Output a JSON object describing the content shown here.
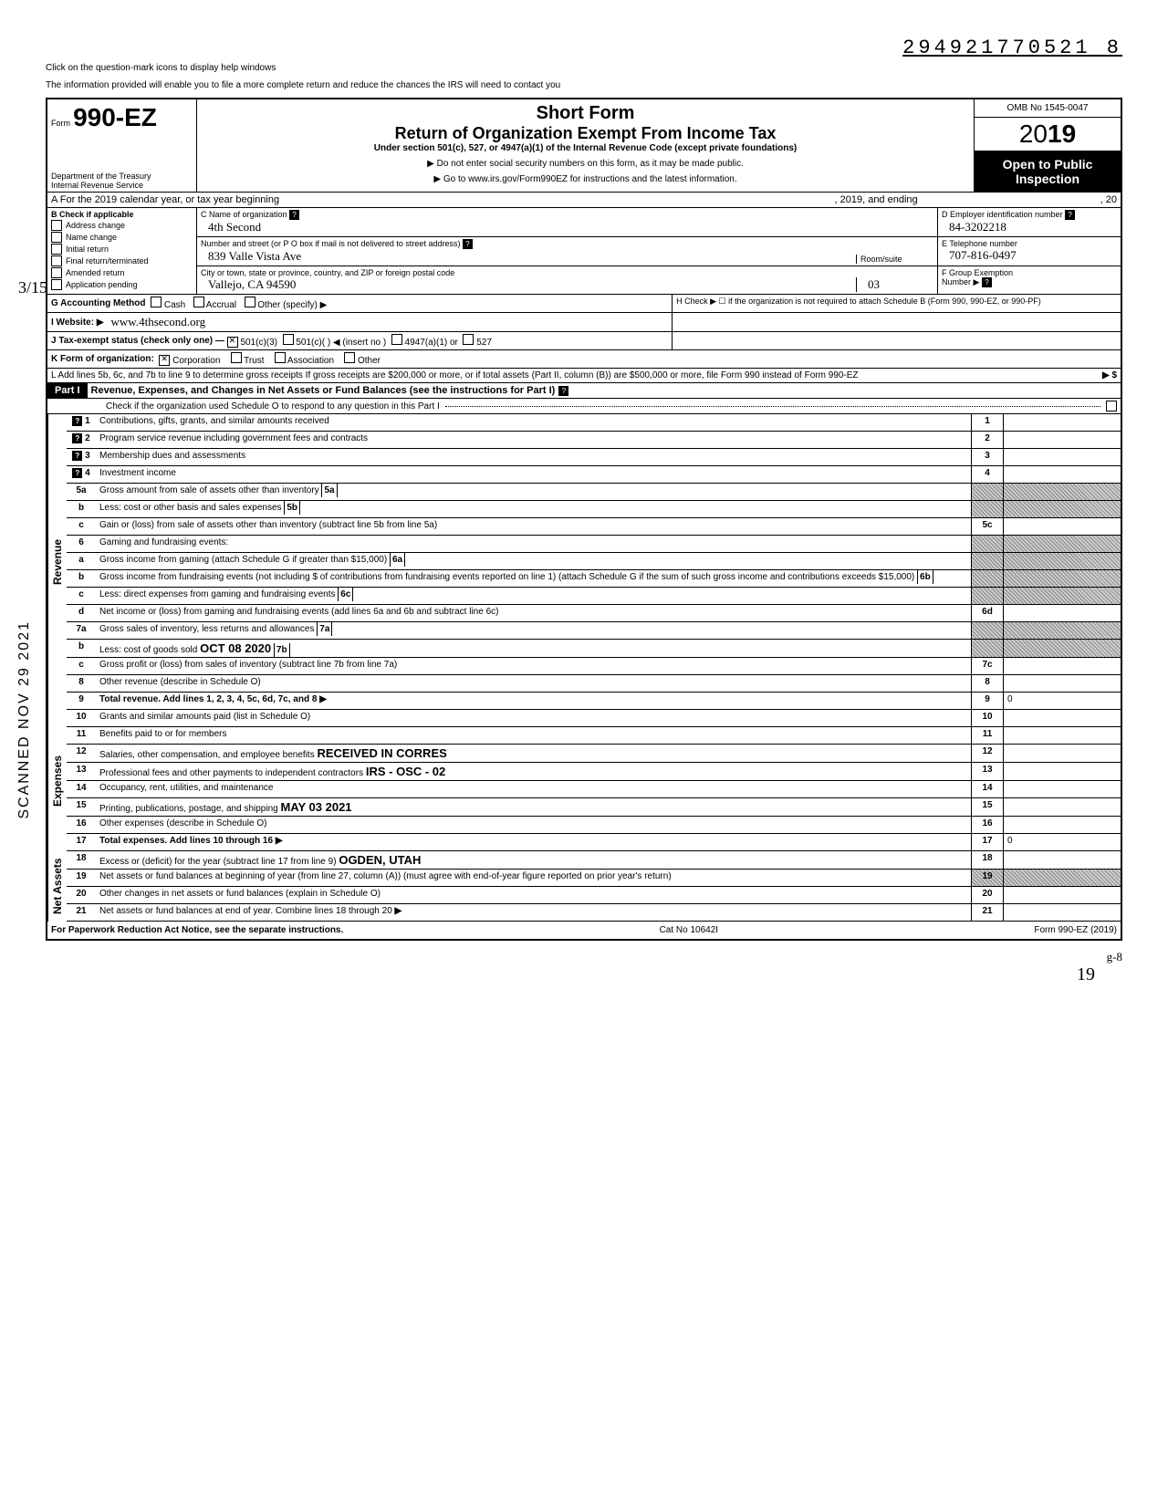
{
  "document_number": "294921770521 8",
  "help_line1": "Click on the question-mark icons to display help windows",
  "help_line2": "The information provided will enable you to file a more complete return and reduce the chances the IRS will need to contact you",
  "form": {
    "prefix": "Form",
    "number": "990-EZ",
    "dept1": "Department of the Treasury",
    "dept2": "Internal Revenue Service"
  },
  "title": {
    "short": "Short Form",
    "main": "Return of Organization Exempt From Income Tax",
    "under": "Under section 501(c), 527, or 4947(a)(1) of the Internal Revenue Code (except private foundations)",
    "warn": "▶ Do not enter social security numbers on this form, as it may be made public.",
    "goto": "▶ Go to www.irs.gov/Form990EZ for instructions and the latest information."
  },
  "right": {
    "omb": "OMB No 1545-0047",
    "year_prefix": "20",
    "year_bold": "19",
    "open": "Open to Public Inspection"
  },
  "row_a": {
    "label": "A For the 2019 calendar year, or tax year beginning",
    "mid": ", 2019, and ending",
    "end": ", 20"
  },
  "col_b": {
    "header": "B Check if applicable",
    "items": [
      "Address change",
      "Name change",
      "Initial return",
      "Final return/terminated",
      "Amended return",
      "Application pending"
    ]
  },
  "col_c": {
    "name_label": "C Name of organization",
    "name_val": "4th Second",
    "street_label": "Number and street (or P O box if mail is not delivered to street address)",
    "room_label": "Room/suite",
    "street_val": "839 Valle Vista Ave",
    "city_label": "City or town, state or province, country, and ZIP or foreign postal code",
    "city_val": "Vallejo, CA  94590",
    "room_val": "03"
  },
  "col_de": {
    "d_label": "D Employer identification number",
    "d_val": "84-3202218",
    "e_label": "E Telephone number",
    "e_val": "707-816-0497",
    "f_label": "F Group Exemption",
    "f_label2": "Number ▶"
  },
  "row_g": "G Accounting Method",
  "g_opts": [
    "Cash",
    "Accrual",
    "Other (specify) ▶"
  ],
  "row_h": "H Check ▶ ☐ if the organization is not required to attach Schedule B (Form 990, 990-EZ, or 990-PF)",
  "row_i_label": "I Website: ▶",
  "row_i_val": "www.4thsecond.org",
  "row_j": "J Tax-exempt status (check only one) —",
  "j_opts": [
    "501(c)(3)",
    "501(c)(    ) ◀ (insert no )",
    "4947(a)(1) or",
    "527"
  ],
  "row_k": "K Form of organization:",
  "k_opts": [
    "Corporation",
    "Trust",
    "Association",
    "Other"
  ],
  "row_l": "L Add lines 5b, 6c, and 7b to line 9 to determine gross receipts If gross receipts are $200,000 or more, or if total assets (Part II, column (B)) are $500,000 or more, file Form 990 instead of Form 990-EZ",
  "part1": {
    "label": "Part I",
    "title": "Revenue, Expenses, and Changes in Net Assets or Fund Balances (see the instructions for Part I)",
    "check": "Check if the organization used Schedule O to respond to any question in this Part I"
  },
  "revenue_label": "Revenue",
  "expenses_label": "Expenses",
  "netassets_label": "Net Assets",
  "lines": {
    "1": {
      "t": "Contributions, gifts, grants, and similar amounts received"
    },
    "2": {
      "t": "Program service revenue including government fees and contracts"
    },
    "3": {
      "t": "Membership dues and assessments"
    },
    "4": {
      "t": "Investment income"
    },
    "5a": {
      "t": "Gross amount from sale of assets other than inventory",
      "box": "5a"
    },
    "5b": {
      "t": "Less: cost or other basis and sales expenses",
      "box": "5b"
    },
    "5c": {
      "t": "Gain or (loss) from sale of assets other than inventory (subtract line 5b from line 5a)"
    },
    "6": {
      "t": "Gaming and fundraising events:"
    },
    "6a": {
      "t": "Gross income from gaming (attach Schedule G if greater than $15,000)",
      "box": "6a"
    },
    "6b": {
      "t": "Gross income from fundraising events (not including $            of contributions from fundraising events reported on line 1) (attach Schedule G if the sum of such gross income and contributions exceeds $15,000)",
      "box": "6b"
    },
    "6c": {
      "t": "Less: direct expenses from gaming and fundraising events",
      "box": "6c"
    },
    "6d": {
      "t": "Net income or (loss) from gaming and fundraising events (add lines 6a and 6b and subtract line 6c)"
    },
    "7a": {
      "t": "Gross sales of inventory, less returns and allowances",
      "box": "7a"
    },
    "7b": {
      "t": "Less: cost of goods sold",
      "box": "7b"
    },
    "7c": {
      "t": "Gross profit or (loss) from sales of inventory (subtract line 7b from line 7a)"
    },
    "8": {
      "t": "Other revenue (describe in Schedule O)"
    },
    "9": {
      "t": "Total revenue. Add lines 1, 2, 3, 4, 5c, 6d, 7c, and 8",
      "val": "0"
    },
    "10": {
      "t": "Grants and similar amounts paid (list in Schedule O)"
    },
    "11": {
      "t": "Benefits paid to or for members"
    },
    "12": {
      "t": "Salaries, other compensation, and employee benefits"
    },
    "13": {
      "t": "Professional fees and other payments to independent contractors"
    },
    "14": {
      "t": "Occupancy, rent, utilities, and maintenance"
    },
    "15": {
      "t": "Printing, publications, postage, and shipping"
    },
    "16": {
      "t": "Other expenses (describe in Schedule O)"
    },
    "17": {
      "t": "Total expenses. Add lines 10 through 16",
      "val": "0"
    },
    "18": {
      "t": "Excess or (deficit) for the year (subtract line 17 from line 9)"
    },
    "19": {
      "t": "Net assets or fund balances at beginning of year (from line 27, column (A)) (must agree with end-of-year figure reported on prior year's return)"
    },
    "20": {
      "t": "Other changes in net assets or fund balances (explain in Schedule O)"
    },
    "21": {
      "t": "Net assets or fund balances at end of year. Combine lines 18 through 20"
    }
  },
  "stamps": {
    "received": "RECEIVED IN CORRES",
    "irs": "IRS - OSC - 02",
    "date": "MAY 03 2021",
    "ogden": "OGDEN, UTAH",
    "oct": "OCT 08 2020"
  },
  "footer": {
    "left": "For Paperwork Reduction Act Notice, see the separate instructions.",
    "mid": "Cat No 10642I",
    "right": "Form 990-EZ (2019)"
  },
  "scanned": "SCANNED NOV 29 2021",
  "margin_hw": "3/15",
  "page_hw": "19",
  "initials": "g-8"
}
